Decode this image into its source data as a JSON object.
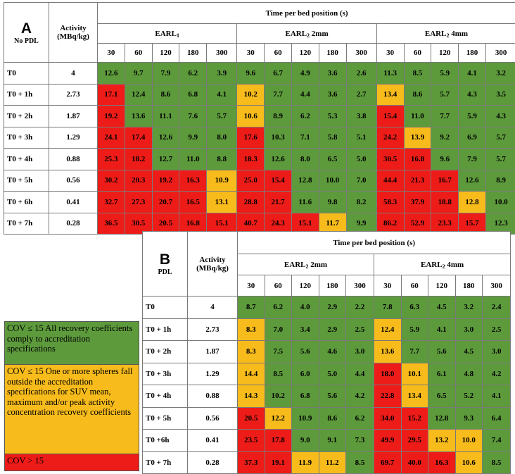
{
  "table_a": {
    "letter": "A",
    "condition": "No PDL",
    "activity_header": "Activity",
    "activity_unit": "(MBq/kg)",
    "time_header": "Time per bed position (s)",
    "groups": [
      {
        "name": "EARL",
        "sub": "1",
        "suffix": ""
      },
      {
        "name": "EARL",
        "sub": "2",
        "suffix": " 2mm"
      },
      {
        "name": "EARL",
        "sub": "2",
        "suffix": " 4mm"
      }
    ],
    "times": [
      "30",
      "60",
      "120",
      "180",
      "300"
    ],
    "rows": [
      {
        "label": "T0",
        "activity": "4",
        "values": [
          "12.6",
          "9.7",
          "7.9",
          "6.2",
          "3.9",
          "9.6",
          "6.7",
          "4.9",
          "3.6",
          "2.6",
          "11.3",
          "8.5",
          "5.9",
          "4.1",
          "3.2"
        ],
        "colors": [
          "g",
          "g",
          "g",
          "g",
          "g",
          "g",
          "g",
          "g",
          "g",
          "g",
          "g",
          "g",
          "g",
          "g",
          "g"
        ]
      },
      {
        "label": "T0 + 1h",
        "activity": "2.73",
        "values": [
          "17.1",
          "12.4",
          "8.6",
          "6.8",
          "4.1",
          "10.2",
          "7.7",
          "4.4",
          "3.6",
          "2.7",
          "13.4",
          "8.6",
          "5.7",
          "4.3",
          "3.5"
        ],
        "colors": [
          "r",
          "g",
          "g",
          "g",
          "g",
          "y",
          "g",
          "g",
          "g",
          "g",
          "y",
          "g",
          "g",
          "g",
          "g"
        ]
      },
      {
        "label": "T0 + 2h",
        "activity": "1.87",
        "values": [
          "19.2",
          "13.6",
          "11.1",
          "7.6",
          "5.7",
          "10.6",
          "8.9",
          "6.2",
          "5.3",
          "3.8",
          "15.4",
          "11.0",
          "7.7",
          "5.9",
          "4.3"
        ],
        "colors": [
          "r",
          "g",
          "g",
          "g",
          "g",
          "y",
          "g",
          "g",
          "g",
          "g",
          "r",
          "g",
          "g",
          "g",
          "g"
        ]
      },
      {
        "label": "T0 + 3h",
        "activity": "1.29",
        "values": [
          "24.1",
          "17.4",
          "12.6",
          "9.9",
          "8.0",
          "17.6",
          "10.3",
          "7.1",
          "5.8",
          "5.1",
          "24.2",
          "13.9",
          "9.2",
          "6.9",
          "5.7"
        ],
        "colors": [
          "r",
          "r",
          "g",
          "g",
          "g",
          "r",
          "g",
          "g",
          "g",
          "g",
          "r",
          "y",
          "g",
          "g",
          "g"
        ]
      },
      {
        "label": "T0 + 4h",
        "activity": "0.88",
        "values": [
          "25.3",
          "18.2",
          "12.7",
          "11.0",
          "8.8",
          "18.3",
          "12.6",
          "8.0",
          "6.5",
          "5.0",
          "30.5",
          "16.8",
          "9.6",
          "7.9",
          "5.7"
        ],
        "colors": [
          "r",
          "r",
          "g",
          "g",
          "g",
          "r",
          "g",
          "g",
          "g",
          "g",
          "r",
          "r",
          "g",
          "g",
          "g"
        ]
      },
      {
        "label": "T0 + 5h",
        "activity": "0.56",
        "values": [
          "30.2",
          "20.3",
          "19.2",
          "16.3",
          "10.9",
          "25.0",
          "15.4",
          "12.8",
          "10.0",
          "7.0",
          "44.4",
          "21.3",
          "16.7",
          "12.6",
          "8.9"
        ],
        "colors": [
          "r",
          "r",
          "r",
          "r",
          "y",
          "r",
          "r",
          "g",
          "g",
          "g",
          "r",
          "r",
          "r",
          "g",
          "g"
        ]
      },
      {
        "label": "T0 + 6h",
        "activity": "0.41",
        "values": [
          "32.7",
          "27.3",
          "20.7",
          "16.5",
          "13.1",
          "28.8",
          "21.7",
          "11.6",
          "9.8",
          "8.2",
          "58.3",
          "37.9",
          "18.8",
          "12.8",
          "10.0"
        ],
        "colors": [
          "r",
          "r",
          "r",
          "r",
          "y",
          "r",
          "r",
          "g",
          "g",
          "g",
          "r",
          "r",
          "r",
          "y",
          "g"
        ]
      },
      {
        "label": "T0 + 7h",
        "activity": "0.28",
        "values": [
          "36.5",
          "30.5",
          "20.5",
          "16.8",
          "15.1",
          "40.7",
          "24.3",
          "15.1",
          "11.7",
          "9.9",
          "86.2",
          "52.9",
          "23.3",
          "15.7",
          "12.3"
        ],
        "colors": [
          "r",
          "r",
          "r",
          "r",
          "r",
          "r",
          "r",
          "r",
          "y",
          "g",
          "r",
          "r",
          "r",
          "r",
          "g"
        ]
      }
    ]
  },
  "table_b": {
    "letter": "B",
    "condition": "PDL",
    "activity_header": "Activity",
    "activity_unit": "(MBq/kg)",
    "time_header": "Time per bed position (s)",
    "groups": [
      {
        "name": "EARL",
        "sub": "2",
        "suffix": " 2mm"
      },
      {
        "name": "EARL",
        "sub": "2",
        "suffix": " 4mm"
      }
    ],
    "times": [
      "30",
      "60",
      "120",
      "180",
      "300"
    ],
    "rows": [
      {
        "label": "T0",
        "activity": "4",
        "values": [
          "8.7",
          "6.2",
          "4.0",
          "2.9",
          "2.2",
          "7.8",
          "6.3",
          "4.5",
          "3.2",
          "2.4"
        ],
        "colors": [
          "g",
          "g",
          "g",
          "g",
          "g",
          "g",
          "g",
          "g",
          "g",
          "g"
        ]
      },
      {
        "label": "T0 + 1h",
        "activity": "2.73",
        "values": [
          "8.3",
          "7.0",
          "3.4",
          "2.9",
          "2.5",
          "12.4",
          "5.9",
          "4.1",
          "3.0",
          "2.5"
        ],
        "colors": [
          "y",
          "g",
          "g",
          "g",
          "g",
          "y",
          "g",
          "g",
          "g",
          "g"
        ]
      },
      {
        "label": "T0 + 2h",
        "activity": "1.87",
        "values": [
          "8.3",
          "7.5",
          "5.6",
          "4.6",
          "3.0",
          "13.6",
          "7.7",
          "5.6",
          "4.5",
          "3.0"
        ],
        "colors": [
          "y",
          "g",
          "g",
          "g",
          "g",
          "y",
          "g",
          "g",
          "g",
          "g"
        ]
      },
      {
        "label": "T0 + 3h",
        "activity": "1.29",
        "values": [
          "14.4",
          "8.5",
          "6.0",
          "5.0",
          "4.4",
          "18.0",
          "10.1",
          "6.1",
          "4.8",
          "4.2"
        ],
        "colors": [
          "y",
          "g",
          "g",
          "g",
          "g",
          "r",
          "y",
          "g",
          "g",
          "g"
        ]
      },
      {
        "label": "T0 + 4h",
        "activity": "0.88",
        "values": [
          "14.3",
          "10.2",
          "6.8",
          "5.6",
          "4.2",
          "22.8",
          "13.4",
          "6.5",
          "5.2",
          "4.1"
        ],
        "colors": [
          "y",
          "g",
          "g",
          "g",
          "g",
          "r",
          "y",
          "g",
          "g",
          "g"
        ]
      },
      {
        "label": "T0 + 5h",
        "activity": "0.56",
        "values": [
          "20.5",
          "12.2",
          "10.9",
          "8.6",
          "6.2",
          "34.0",
          "15.2",
          "12.8",
          "9.3",
          "6.4"
        ],
        "colors": [
          "r",
          "y",
          "g",
          "g",
          "g",
          "r",
          "r",
          "g",
          "g",
          "g"
        ]
      },
      {
        "label": "T0 +6h",
        "activity": "0.41",
        "values": [
          "23.5",
          "17.8",
          "9.0",
          "9.1",
          "7.3",
          "49.9",
          "29.5",
          "13.2",
          "10.0",
          "7.4"
        ],
        "colors": [
          "r",
          "r",
          "g",
          "g",
          "g",
          "r",
          "r",
          "y",
          "y",
          "g"
        ]
      },
      {
        "label": "T0 + 7h",
        "activity": "0.28",
        "values": [
          "37.3",
          "19.1",
          "11.9",
          "11.2",
          "8.5",
          "69.7",
          "40.0",
          "16.3",
          "10.6",
          "8.5"
        ],
        "colors": [
          "r",
          "r",
          "y",
          "y",
          "g",
          "r",
          "r",
          "r",
          "y",
          "g"
        ]
      }
    ]
  },
  "legend": {
    "green": "COV ≤ 15 All recovery coefficients comply to accreditation specifications",
    "yellow": "COV ≤ 15 One or more spheres fall outside the accreditation specifications for SUV mean, maximum and/or peak activity concentration recovery coefficients",
    "red": "COV > 15"
  },
  "colors": {
    "green": "#5d9a3c",
    "yellow": "#f7bb1c",
    "red": "#ee1c18"
  }
}
